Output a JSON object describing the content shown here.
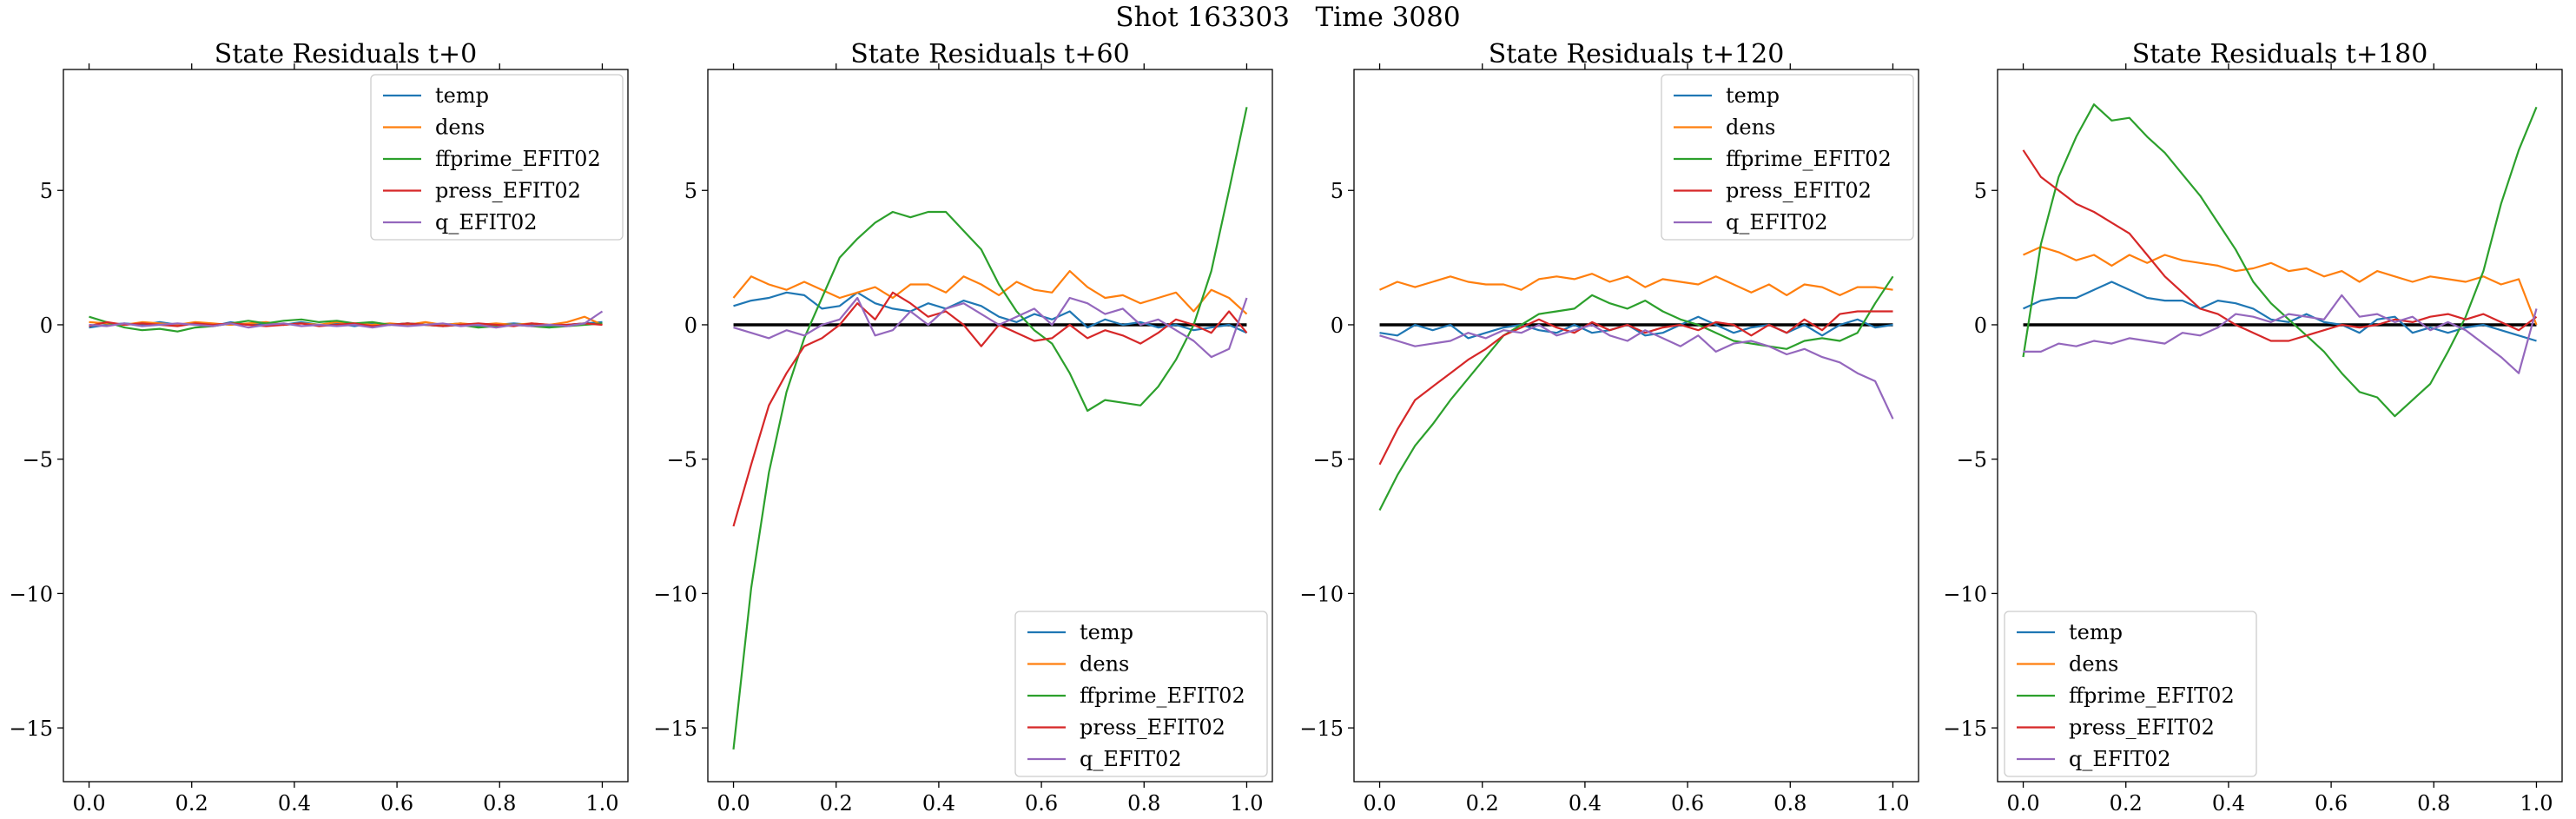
{
  "figure": {
    "suptitle": "Shot 163303   Time 3080"
  },
  "colors": {
    "temp": "#1f77b4",
    "dens": "#ff7f0e",
    "ffprime_EFIT02": "#2ca02c",
    "press_EFIT02": "#d62728",
    "q_EFIT02": "#9467bd",
    "zero_line": "#000000"
  },
  "chart_data": [
    {
      "type": "line",
      "title": "State Residuals t+0",
      "xlabel": "",
      "ylabel": "",
      "xlim": [
        -0.05,
        1.05
      ],
      "ylim": [
        -17,
        9.5
      ],
      "xticks": [
        "0.0",
        "0.2",
        "0.4",
        "0.6",
        "0.8",
        "1.0"
      ],
      "yticks": [
        "−15",
        "−10",
        "−5",
        "0",
        "5"
      ],
      "legend_position": "upper right",
      "zero_line": false,
      "x": [
        0.0,
        0.0345,
        0.069,
        0.1034,
        0.1379,
        0.1724,
        0.2069,
        0.2414,
        0.2759,
        0.3103,
        0.3448,
        0.3793,
        0.4138,
        0.4483,
        0.4828,
        0.5172,
        0.5517,
        0.5862,
        0.6207,
        0.6552,
        0.6897,
        0.7241,
        0.7586,
        0.7931,
        0.8276,
        0.8621,
        0.8966,
        0.931,
        0.9655,
        1.0
      ],
      "series": [
        {
          "name": "temp",
          "values": [
            -0.1,
            0.0,
            0.05,
            0.0,
            0.1,
            0.0,
            0.05,
            -0.05,
            0.1,
            0.0,
            0.05,
            0.0,
            0.1,
            0.0,
            0.05,
            -0.05,
            0.05,
            0.0,
            0.05,
            0.0,
            0.0,
            0.05,
            -0.05,
            0.0,
            0.05,
            0.0,
            -0.05,
            0.0,
            0.05,
            0.1
          ]
        },
        {
          "name": "dens",
          "values": [
            0.1,
            0.05,
            0.0,
            0.1,
            0.05,
            0.0,
            0.1,
            0.05,
            0.0,
            0.05,
            0.1,
            0.0,
            0.05,
            0.0,
            0.1,
            0.05,
            0.0,
            0.05,
            0.0,
            0.1,
            0.0,
            0.05,
            0.0,
            0.05,
            0.0,
            0.05,
            0.0,
            0.1,
            0.3,
            0.0
          ]
        },
        {
          "name": "ffprime_EFIT02",
          "values": [
            0.3,
            0.1,
            -0.1,
            -0.2,
            -0.15,
            -0.25,
            -0.1,
            -0.05,
            0.05,
            0.15,
            0.05,
            0.15,
            0.2,
            0.1,
            0.15,
            0.05,
            0.1,
            0.0,
            0.05,
            0.0,
            -0.05,
            0.0,
            -0.1,
            -0.05,
            0.0,
            -0.05,
            -0.1,
            -0.05,
            0.0,
            0.05
          ]
        },
        {
          "name": "press_EFIT02",
          "values": [
            -0.05,
            0.1,
            0.0,
            0.05,
            0.0,
            -0.05,
            0.05,
            0.0,
            0.05,
            0.0,
            -0.05,
            0.0,
            0.05,
            -0.05,
            0.0,
            0.05,
            -0.05,
            0.0,
            0.05,
            0.0,
            -0.05,
            0.0,
            0.05,
            0.0,
            -0.05,
            0.05,
            0.0,
            0.0,
            0.05,
            0.0
          ]
        },
        {
          "name": "q_EFIT02",
          "values": [
            0.0,
            -0.05,
            0.05,
            -0.05,
            0.0,
            0.05,
            0.0,
            -0.05,
            0.05,
            -0.1,
            0.0,
            0.05,
            -0.05,
            0.0,
            -0.05,
            0.0,
            -0.1,
            0.0,
            -0.05,
            0.0,
            0.05,
            -0.05,
            0.0,
            -0.1,
            0.0,
            -0.05,
            0.0,
            -0.05,
            0.05,
            0.5
          ]
        }
      ]
    },
    {
      "type": "line",
      "title": "State Residuals t+60",
      "xlabel": "",
      "ylabel": "",
      "xlim": [
        -0.05,
        1.05
      ],
      "ylim": [
        -17,
        9.5
      ],
      "xticks": [
        "0.0",
        "0.2",
        "0.4",
        "0.6",
        "0.8",
        "1.0"
      ],
      "yticks": [
        "−15",
        "−10",
        "−5",
        "0",
        "5"
      ],
      "legend_position": "lower right",
      "zero_line": true,
      "x": [
        0.0,
        0.0345,
        0.069,
        0.1034,
        0.1379,
        0.1724,
        0.2069,
        0.2414,
        0.2759,
        0.3103,
        0.3448,
        0.3793,
        0.4138,
        0.4483,
        0.4828,
        0.5172,
        0.5517,
        0.5862,
        0.6207,
        0.6552,
        0.6897,
        0.7241,
        0.7586,
        0.7931,
        0.8276,
        0.8621,
        0.8966,
        0.931,
        0.9655,
        1.0
      ],
      "series": [
        {
          "name": "temp",
          "values": [
            0.7,
            0.9,
            1.0,
            1.2,
            1.1,
            0.6,
            0.7,
            1.2,
            0.8,
            0.6,
            0.5,
            0.8,
            0.6,
            0.9,
            0.7,
            0.3,
            0.1,
            0.4,
            0.2,
            0.5,
            -0.1,
            0.2,
            0.0,
            0.1,
            -0.1,
            0.0,
            -0.2,
            -0.1,
            0.0,
            -0.3
          ]
        },
        {
          "name": "dens",
          "values": [
            1.0,
            1.8,
            1.5,
            1.3,
            1.6,
            1.3,
            1.0,
            1.2,
            1.4,
            1.0,
            1.5,
            1.5,
            1.2,
            1.8,
            1.5,
            1.1,
            1.6,
            1.3,
            1.2,
            2.0,
            1.4,
            1.0,
            1.1,
            0.8,
            1.0,
            1.2,
            0.5,
            1.3,
            1.0,
            0.4
          ]
        },
        {
          "name": "ffprime_EFIT02",
          "values": [
            -15.8,
            -9.8,
            -5.5,
            -2.5,
            -0.5,
            1.0,
            2.5,
            3.2,
            3.8,
            4.2,
            4.0,
            4.2,
            4.2,
            3.5,
            2.8,
            1.5,
            0.5,
            -0.2,
            -0.7,
            -1.8,
            -3.2,
            -2.8,
            -2.9,
            -3.0,
            -2.3,
            -1.3,
            0.0,
            2.0,
            5.0,
            8.1
          ]
        },
        {
          "name": "press_EFIT02",
          "values": [
            -7.5,
            -5.2,
            -3.0,
            -1.8,
            -0.8,
            -0.5,
            0.0,
            0.8,
            0.2,
            1.2,
            0.8,
            0.3,
            0.5,
            0.0,
            -0.8,
            0.0,
            -0.3,
            -0.6,
            -0.5,
            0.0,
            -0.5,
            -0.2,
            -0.4,
            -0.7,
            -0.3,
            0.2,
            0.0,
            -0.3,
            0.5,
            -0.3
          ]
        },
        {
          "name": "q_EFIT02",
          "values": [
            -0.1,
            -0.3,
            -0.5,
            -0.2,
            -0.4,
            0.0,
            0.2,
            1.0,
            -0.4,
            -0.2,
            0.5,
            0.0,
            0.6,
            0.8,
            0.4,
            0.0,
            0.3,
            0.6,
            0.0,
            1.0,
            0.8,
            0.4,
            0.6,
            0.0,
            0.2,
            -0.2,
            -0.6,
            -1.2,
            -0.9,
            1.0
          ]
        }
      ]
    },
    {
      "type": "line",
      "title": "State Residuals t+120",
      "xlabel": "",
      "ylabel": "",
      "xlim": [
        -0.05,
        1.05
      ],
      "ylim": [
        -17,
        9.5
      ],
      "xticks": [
        "0.0",
        "0.2",
        "0.4",
        "0.6",
        "0.8",
        "1.0"
      ],
      "yticks": [
        "−15",
        "−10",
        "−5",
        "0",
        "5"
      ],
      "legend_position": "upper right",
      "zero_line": true,
      "x": [
        0.0,
        0.0345,
        0.069,
        0.1034,
        0.1379,
        0.1724,
        0.2069,
        0.2414,
        0.2759,
        0.3103,
        0.3448,
        0.3793,
        0.4138,
        0.4483,
        0.4828,
        0.5172,
        0.5517,
        0.5862,
        0.6207,
        0.6552,
        0.6897,
        0.7241,
        0.7586,
        0.7931,
        0.8276,
        0.8621,
        0.8966,
        0.931,
        0.9655,
        1.0
      ],
      "series": [
        {
          "name": "temp",
          "values": [
            -0.3,
            -0.4,
            0.0,
            -0.2,
            0.0,
            -0.5,
            -0.3,
            -0.1,
            0.0,
            -0.2,
            -0.3,
            0.0,
            -0.3,
            -0.2,
            0.0,
            -0.4,
            -0.3,
            0.0,
            0.3,
            0.0,
            -0.3,
            -0.1,
            0.0,
            -0.3,
            0.0,
            -0.4,
            0.0,
            0.2,
            -0.1,
            0.0
          ]
        },
        {
          "name": "dens",
          "values": [
            1.3,
            1.6,
            1.4,
            1.6,
            1.8,
            1.6,
            1.5,
            1.5,
            1.3,
            1.7,
            1.8,
            1.7,
            1.9,
            1.6,
            1.8,
            1.4,
            1.7,
            1.6,
            1.5,
            1.8,
            1.5,
            1.2,
            1.5,
            1.1,
            1.5,
            1.4,
            1.1,
            1.4,
            1.4,
            1.3
          ]
        },
        {
          "name": "ffprime_EFIT02",
          "values": [
            -6.9,
            -5.6,
            -4.5,
            -3.7,
            -2.8,
            -2.0,
            -1.2,
            -0.4,
            0.0,
            0.4,
            0.5,
            0.6,
            1.1,
            0.8,
            0.6,
            0.9,
            0.5,
            0.2,
            0.0,
            -0.3,
            -0.6,
            -0.7,
            -0.8,
            -0.9,
            -0.6,
            -0.5,
            -0.6,
            -0.3,
            0.8,
            1.8
          ]
        },
        {
          "name": "press_EFIT02",
          "values": [
            -5.2,
            -3.9,
            -2.8,
            -2.3,
            -1.8,
            -1.3,
            -0.9,
            -0.4,
            -0.1,
            0.2,
            -0.1,
            -0.3,
            0.1,
            -0.2,
            0.0,
            -0.3,
            -0.1,
            0.0,
            -0.2,
            0.1,
            0.0,
            -0.4,
            0.0,
            -0.3,
            0.2,
            -0.2,
            0.4,
            0.5,
            0.5,
            0.5
          ]
        },
        {
          "name": "q_EFIT02",
          "values": [
            -0.4,
            -0.6,
            -0.8,
            -0.7,
            -0.6,
            -0.3,
            -0.5,
            -0.2,
            -0.3,
            0.0,
            -0.4,
            -0.2,
            0.0,
            -0.4,
            -0.6,
            -0.2,
            -0.5,
            -0.8,
            -0.4,
            -1.0,
            -0.7,
            -0.6,
            -0.8,
            -1.1,
            -0.9,
            -1.2,
            -1.4,
            -1.8,
            -2.1,
            -3.5
          ]
        }
      ]
    },
    {
      "type": "line",
      "title": "State Residuals t+180",
      "xlabel": "",
      "ylabel": "",
      "xlim": [
        -0.05,
        1.05
      ],
      "ylim": [
        -17,
        9.5
      ],
      "xticks": [
        "0.0",
        "0.2",
        "0.4",
        "0.6",
        "0.8",
        "1.0"
      ],
      "yticks": [
        "−15",
        "−10",
        "−5",
        "0",
        "5"
      ],
      "legend_position": "lower left",
      "zero_line": true,
      "x": [
        0.0,
        0.0345,
        0.069,
        0.1034,
        0.1379,
        0.1724,
        0.2069,
        0.2414,
        0.2759,
        0.3103,
        0.3448,
        0.3793,
        0.4138,
        0.4483,
        0.4828,
        0.5172,
        0.5517,
        0.5862,
        0.6207,
        0.6552,
        0.6897,
        0.7241,
        0.7586,
        0.7931,
        0.8276,
        0.8621,
        0.8966,
        0.931,
        0.9655,
        1.0
      ],
      "series": [
        {
          "name": "temp",
          "values": [
            0.6,
            0.9,
            1.0,
            1.0,
            1.3,
            1.6,
            1.3,
            1.0,
            0.9,
            0.9,
            0.6,
            0.9,
            0.8,
            0.6,
            0.2,
            0.1,
            0.4,
            0.1,
            0.0,
            -0.3,
            0.2,
            0.3,
            -0.3,
            -0.1,
            -0.3,
            -0.1,
            0.0,
            -0.2,
            -0.4,
            -0.6
          ]
        },
        {
          "name": "dens",
          "values": [
            2.6,
            2.9,
            2.7,
            2.4,
            2.6,
            2.2,
            2.6,
            2.3,
            2.6,
            2.4,
            2.3,
            2.2,
            2.0,
            2.1,
            2.3,
            2.0,
            2.1,
            1.8,
            2.0,
            1.6,
            2.0,
            1.8,
            1.6,
            1.8,
            1.7,
            1.6,
            1.8,
            1.5,
            1.7,
            0.0
          ]
        },
        {
          "name": "ffprime_EFIT02",
          "values": [
            -1.2,
            3.0,
            5.5,
            7.0,
            8.2,
            7.6,
            7.7,
            7.0,
            6.4,
            5.6,
            4.8,
            3.8,
            2.8,
            1.6,
            0.8,
            0.2,
            -0.4,
            -1.0,
            -1.8,
            -2.5,
            -2.7,
            -3.4,
            -2.8,
            -2.2,
            -1.0,
            0.3,
            2.0,
            4.5,
            6.5,
            8.1
          ]
        },
        {
          "name": "press_EFIT02",
          "values": [
            6.5,
            5.5,
            5.0,
            4.5,
            4.2,
            3.8,
            3.4,
            2.6,
            1.8,
            1.2,
            0.6,
            0.4,
            0.0,
            -0.3,
            -0.6,
            -0.6,
            -0.4,
            -0.2,
            0.0,
            -0.1,
            0.0,
            0.2,
            0.1,
            0.3,
            0.4,
            0.2,
            0.4,
            0.1,
            -0.2,
            0.3
          ]
        },
        {
          "name": "q_EFIT02",
          "values": [
            -1.0,
            -1.0,
            -0.7,
            -0.8,
            -0.6,
            -0.7,
            -0.5,
            -0.6,
            -0.7,
            -0.3,
            -0.4,
            -0.1,
            0.4,
            0.3,
            0.1,
            0.4,
            0.3,
            0.2,
            1.1,
            0.3,
            0.4,
            0.1,
            0.3,
            -0.2,
            0.1,
            -0.2,
            -0.7,
            -1.2,
            -1.8,
            0.6
          ]
        }
      ]
    }
  ]
}
